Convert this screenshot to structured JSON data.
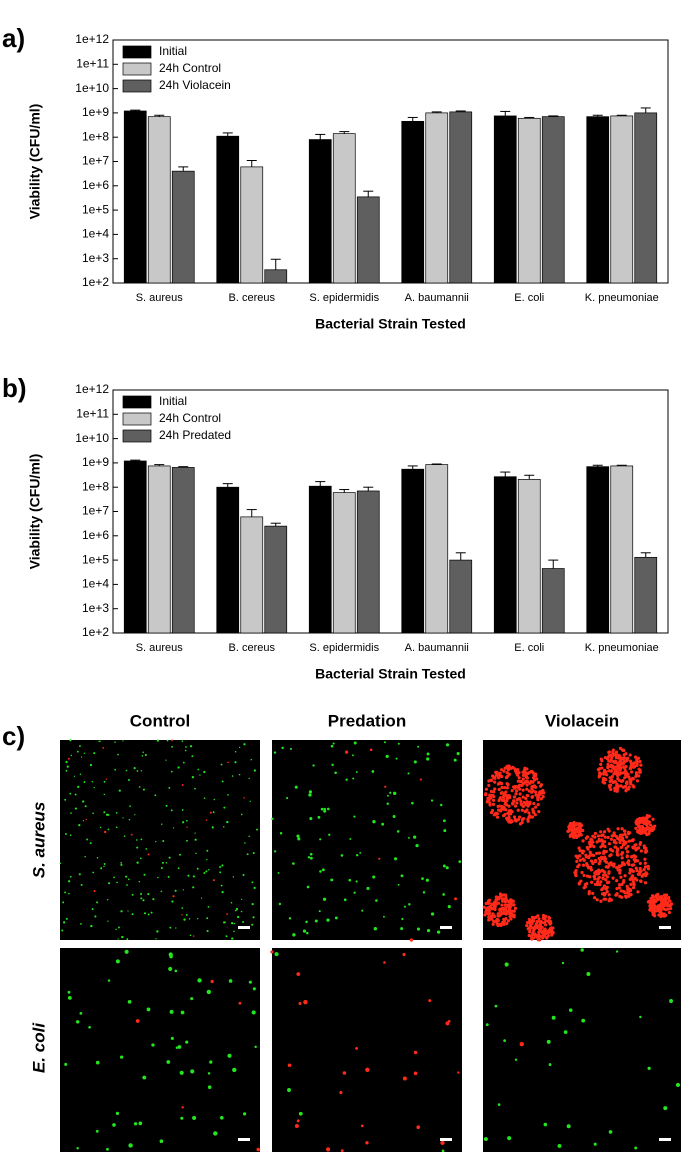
{
  "chart_data": [
    {
      "type": "bar",
      "panel_label": "a)",
      "log_y": true,
      "legend": "upper left",
      "x_label": "Bacterial Strain Tested",
      "y_label": "Viability (CFU/ml)",
      "categories": [
        "S. aureus",
        "B. cereus",
        "S. epidermidis",
        "A. baumannii",
        "E. coli",
        "K. pneumoniae"
      ],
      "ylim": [
        100,
        1000000000000.0
      ],
      "yticks": [
        {
          "value": 100,
          "label": "1e+2"
        },
        {
          "value": 1000,
          "label": "1e+3"
        },
        {
          "value": 10000,
          "label": "1e+4"
        },
        {
          "value": 100000,
          "label": "1e+5"
        },
        {
          "value": 1000000,
          "label": "1e+6"
        },
        {
          "value": 10000000,
          "label": "1e+7"
        },
        {
          "value": 100000000,
          "label": "1e+8"
        },
        {
          "value": 1000000000,
          "label": "1e+9"
        },
        {
          "value": 10000000000,
          "label": "1e+10"
        },
        {
          "value": 100000000000,
          "label": "1e+11"
        },
        {
          "value": 1000000000000,
          "label": "1e+12"
        }
      ],
      "series": [
        {
          "name": "Initial",
          "color": "#000000",
          "values": [
            1200000000,
            110000000,
            80000000,
            450000000,
            750000000,
            700000000
          ],
          "errors": [
            100000000,
            40000000,
            50000000,
            200000000,
            400000000,
            100000000
          ]
        },
        {
          "name": "24h Control",
          "color": "#c8c8c8",
          "values": [
            700000000,
            6000000,
            140000000,
            1000000000,
            600000000,
            750000000
          ],
          "errors": [
            100000000,
            5000000,
            30000000,
            100000000,
            50000000,
            50000000
          ]
        },
        {
          "name": "24h Violacein",
          "color": "#5f5f5f",
          "values": [
            4000000,
            350,
            350000,
            1100000000,
            700000000,
            1000000000
          ],
          "errors": [
            2000000,
            600,
            250000,
            100000000,
            50000000,
            600000000
          ]
        }
      ]
    },
    {
      "type": "bar",
      "panel_label": "b)",
      "log_y": true,
      "legend": "upper left",
      "x_label": "Bacterial Strain Tested",
      "y_label": "Viability (CFU/ml)",
      "categories": [
        "S. aureus",
        "B. cereus",
        "S. epidermidis",
        "A. baumannii",
        "E. coli",
        "K. pneumoniae"
      ],
      "ylim": [
        100,
        1000000000000.0
      ],
      "yticks": [
        {
          "value": 100,
          "label": "1e+2"
        },
        {
          "value": 1000,
          "label": "1e+3"
        },
        {
          "value": 10000,
          "label": "1e+4"
        },
        {
          "value": 100000,
          "label": "1e+5"
        },
        {
          "value": 1000000,
          "label": "1e+6"
        },
        {
          "value": 10000000,
          "label": "1e+7"
        },
        {
          "value": 100000000,
          "label": "1e+8"
        },
        {
          "value": 1000000000,
          "label": "1e+9"
        },
        {
          "value": 10000000000,
          "label": "1e+10"
        },
        {
          "value": 100000000000,
          "label": "1e+11"
        },
        {
          "value": 1000000000000,
          "label": "1e+12"
        }
      ],
      "series": [
        {
          "name": "Initial",
          "color": "#000000",
          "values": [
            1200000000,
            100000000,
            110000000,
            550000000,
            270000000,
            700000000
          ],
          "errors": [
            100000000,
            40000000,
            60000000,
            200000000,
            150000000,
            100000000
          ]
        },
        {
          "name": "24h Control",
          "color": "#c8c8c8",
          "values": [
            750000000,
            6000000,
            60000000,
            850000000,
            210000000,
            750000000
          ],
          "errors": [
            100000000,
            6000000,
            20000000,
            50000000,
            100000000,
            50000000
          ]
        },
        {
          "name": "24h Predated",
          "color": "#5f5f5f",
          "values": [
            650000000,
            2500000,
            70000000,
            100000,
            45000,
            130000
          ],
          "errors": [
            50000000,
            800000,
            30000000,
            100000,
            55000,
            70000
          ]
        }
      ]
    }
  ],
  "micrographs": {
    "panel_label": "c)",
    "columns": [
      "Control",
      "Predation",
      "Violacein"
    ],
    "rows": [
      "S. aureus",
      "E. coli"
    ]
  }
}
